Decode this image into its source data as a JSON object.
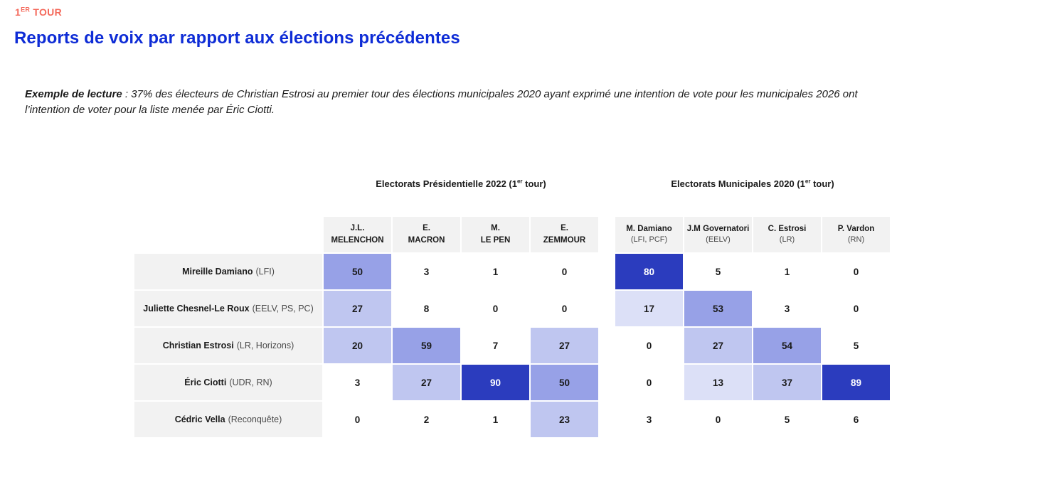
{
  "header": {
    "kicker": {
      "number": "1",
      "sup": "ER",
      "rest": " TOUR"
    },
    "title": "Reports de voix par rapport aux élections précédentes"
  },
  "example": {
    "label": "Exemple de lecture",
    "line1_rest": " : 37% des électeurs de Christian Estrosi au premier tour des élections municipales 2020 ayant exprimé une intention de vote pour les municipales 2026 ont",
    "line2": "l’intention de voter pour la liste menée par Éric Ciotti."
  },
  "colors": {
    "kicker": "#F4695B",
    "title": "#0E2CD6",
    "box_gray": "#F2F2F2",
    "text_dark": "#1A1A1A",
    "text_muted": "#4A4A4A",
    "heat_dark": "#2B3CBE",
    "heat_medium": "#97A1E7",
    "heat_light": "#BFC6F0",
    "heat_faint": "#DCE0F7"
  },
  "chart_data": {
    "type": "heatmap",
    "title": "Reports de voix par rapport aux élections précédentes",
    "subtitle": "1er tour",
    "unit": "%",
    "rows": [
      {
        "name": "Mireille Damiano",
        "party": "(LFI)"
      },
      {
        "name": "Juliette Chesnel-Le Roux",
        "party": "(EELV, PS, PC)"
      },
      {
        "name": "Christian Estrosi",
        "party": "(LR, Horizons)"
      },
      {
        "name": "Éric Ciotti",
        "party": "(UDR, RN)"
      },
      {
        "name": "Cédric Vella",
        "party": "(Reconquête)"
      }
    ],
    "groups": [
      {
        "title": {
          "pre": "Electorats Présidentielle 2022 (1",
          "sup": "er",
          "post": " tour)"
        },
        "columns": [
          {
            "line1": "J.L.",
            "line2": "MELENCHON"
          },
          {
            "line1": "E.",
            "line2": "MACRON"
          },
          {
            "line1": "M.",
            "line2": "LE PEN"
          },
          {
            "line1": "E.",
            "line2": "ZEMMOUR"
          }
        ],
        "values": [
          [
            50,
            3,
            1,
            0
          ],
          [
            27,
            8,
            0,
            0
          ],
          [
            20,
            59,
            7,
            27
          ],
          [
            3,
            27,
            90,
            50
          ],
          [
            0,
            2,
            1,
            23
          ]
        ]
      },
      {
        "title": {
          "pre": "Electorats Municipales 2020 (1",
          "sup": "er",
          "post": " tour)"
        },
        "columns": [
          {
            "line1": "M. Damiano",
            "line2": "(LFI, PCF)"
          },
          {
            "line1": "J.M Governatori",
            "line2": "(EELV)"
          },
          {
            "line1": "C. Estrosi",
            "line2": "(LR)"
          },
          {
            "line1": "P. Vardon",
            "line2": "(RN)"
          }
        ],
        "values": [
          [
            80,
            5,
            1,
            0
          ],
          [
            17,
            53,
            3,
            0
          ],
          [
            0,
            27,
            54,
            5
          ],
          [
            0,
            13,
            37,
            89
          ],
          [
            3,
            0,
            5,
            6
          ]
        ]
      }
    ],
    "color_scale": [
      {
        "min": 80,
        "bg": "#2B3CBE",
        "fg": "#FFFFFF"
      },
      {
        "min": 50,
        "bg": "#97A1E7",
        "fg": "#1A1A1A"
      },
      {
        "min": 20,
        "bg": "#BFC6F0",
        "fg": "#1A1A1A"
      },
      {
        "min": 10,
        "bg": "#DCE0F7",
        "fg": "#1A1A1A"
      },
      {
        "min": 0,
        "bg": "#FFFFFF",
        "fg": "#1A1A1A"
      }
    ]
  }
}
